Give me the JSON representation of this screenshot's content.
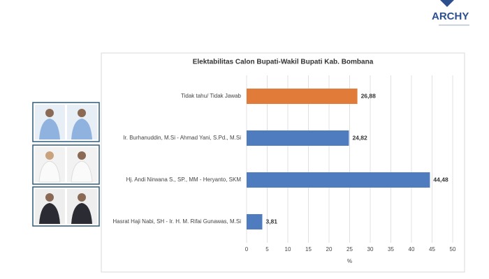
{
  "logo": "ARCHY",
  "chart_data": {
    "type": "hbar",
    "title": "Elektabilitas Calon Bupati-Wakil Bupati Kab. Bombana",
    "categories": [
      "Tidak tahu/ Tidak Jawab",
      "Ir. Burhanuddin, M.Si - Ahmad Yani, S.Pd., M.Si",
      "Hj. Andi Nirwana S., SP., MM - Heryanto, SKM",
      "Hasrat Haji Nabi, SH - Ir. H. M. Rifai Gunawas, M.Si"
    ],
    "values": [
      26.88,
      24.82,
      44.48,
      3.81
    ],
    "value_labels": [
      "26,88",
      "24,82",
      "44,48",
      "3,81"
    ],
    "colors": [
      "#e07b39",
      "#4f7bbf",
      "#4f7bbf",
      "#4f7bbf"
    ],
    "xlabel": "%",
    "xlim": [
      0,
      50
    ],
    "xticks": [
      0,
      5,
      10,
      15,
      20,
      25,
      30,
      35,
      40,
      45,
      50
    ],
    "grid": true
  }
}
